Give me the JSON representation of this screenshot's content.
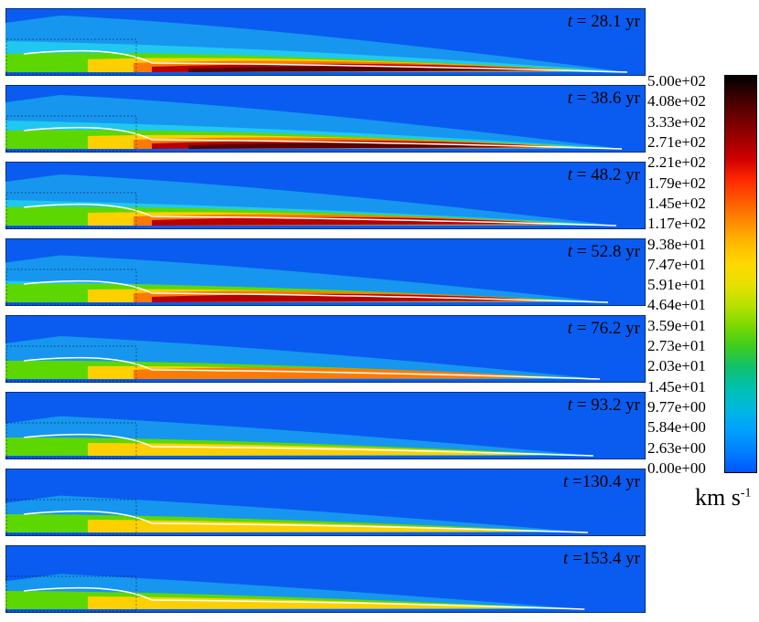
{
  "frames": [
    {
      "t_label": "t",
      "t_value": "= 28.1 yr",
      "intensity": 1.0
    },
    {
      "t_label": "t",
      "t_value": "= 38.6 yr",
      "intensity": 0.9
    },
    {
      "t_label": "t",
      "t_value": "= 48.2 yr",
      "intensity": 0.8
    },
    {
      "t_label": "t",
      "t_value": "= 52.8 yr",
      "intensity": 0.65
    },
    {
      "t_label": "t",
      "t_value": "= 76.2 yr",
      "intensity": 0.5
    },
    {
      "t_label": "t",
      "t_value": "= 93.2 yr",
      "intensity": 0.38
    },
    {
      "t_label": "t",
      "t_value": "=130.4 yr",
      "intensity": 0.28
    },
    {
      "t_label": "t",
      "t_value": "=153.4 yr",
      "intensity": 0.22
    }
  ],
  "colorbar": {
    "labels": [
      "5.00e+02",
      "4.08e+02",
      "3.33e+02",
      "2.71e+02",
      "2.21e+02",
      "1.79e+02",
      "1.45e+02",
      "1.17e+02",
      "9.38e+01",
      "7.47e+01",
      "5.91e+01",
      "4.64e+01",
      "3.59e+01",
      "2.73e+01",
      "2.03e+01",
      "1.45e+01",
      "9.77e+00",
      "5.84e+00",
      "2.63e+00",
      "0.00e+00"
    ],
    "colors": [
      "#000000",
      "#3a0000",
      "#6e0000",
      "#9e0000",
      "#d10000",
      "#ff2a00",
      "#ff5a00",
      "#ff8a00",
      "#ffb800",
      "#ffd800",
      "#e8e000",
      "#b8e000",
      "#7ad800",
      "#3ccc20",
      "#10c070",
      "#00c0b0",
      "#00b8e0",
      "#00a0ff",
      "#0080ff",
      "#0055ff"
    ]
  },
  "unit": {
    "main": "km s",
    "exp": "-1"
  },
  "colors": {
    "background": "#0a5cf0",
    "cyan": "#1aa0ee",
    "contour": "#ffffff"
  }
}
